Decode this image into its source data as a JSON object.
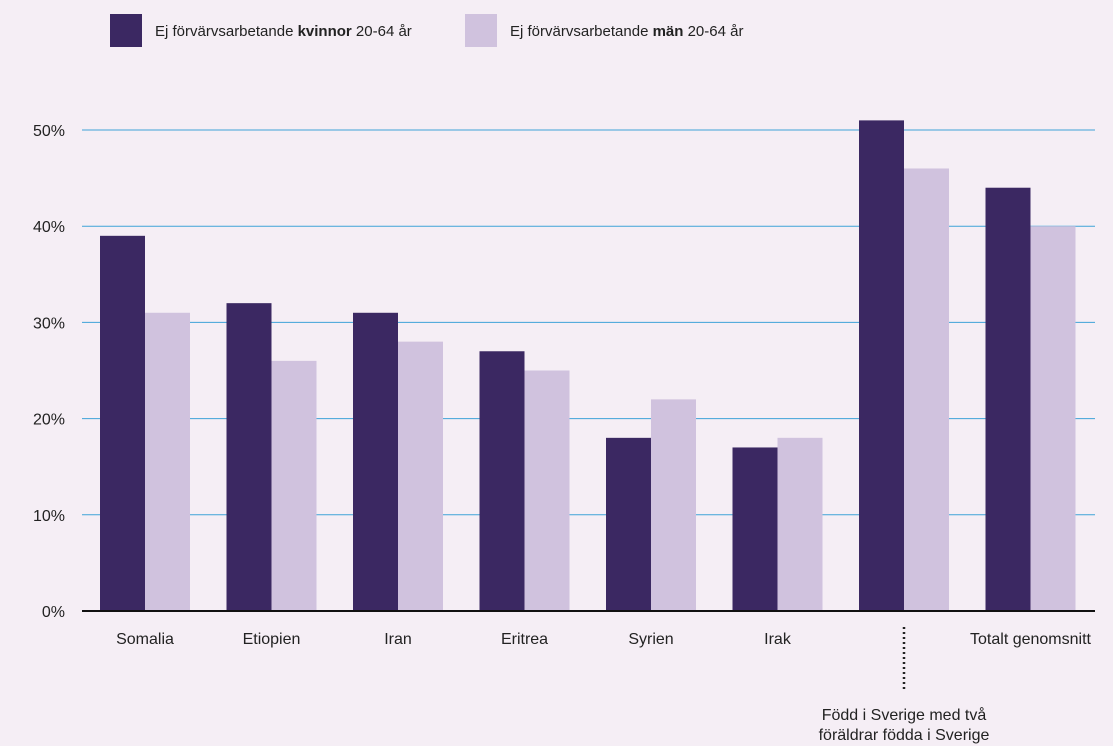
{
  "chart_data": {
    "type": "bar",
    "categories": [
      "Somalia",
      "Etiopien",
      "Iran",
      "Eritrea",
      "Syrien",
      "Irak",
      "Född i Sverige med två föräldrar födda i Sverige",
      "Totalt genomsnitt"
    ],
    "category_label_lines": {
      "6": [
        "Född i Sverige med två",
        "föräldrar födda i Sverige"
      ]
    },
    "series": [
      {
        "legend_prefix": "Ej förvärvsarbetande ",
        "legend_bold": "kvinnor",
        "legend_suffix": " 20-64 år",
        "color": "#3b2862",
        "values": [
          39,
          32,
          31,
          27,
          18,
          17,
          51,
          44
        ]
      },
      {
        "legend_prefix": "Ej förvärvsarbetande ",
        "legend_bold": "män",
        "legend_suffix": " 20-64 år",
        "color": "#d0c2de",
        "values": [
          31,
          26,
          28,
          25,
          22,
          18,
          46,
          40
        ]
      }
    ],
    "ylim": [
      0,
      50
    ],
    "yticks": [
      0,
      10,
      20,
      30,
      40,
      50
    ],
    "ytick_labels": [
      "0%",
      "10%",
      "20%",
      "30%",
      "40%",
      "50%"
    ],
    "grid": true,
    "grid_color": "#3ea3d8",
    "legend_position": "top-left"
  }
}
